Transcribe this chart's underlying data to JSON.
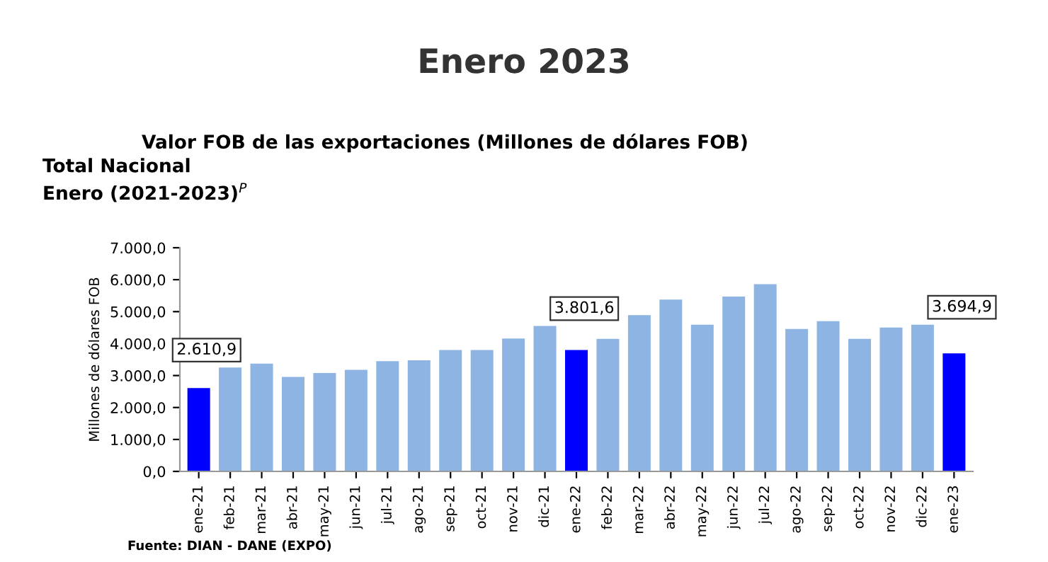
{
  "chart_data": {
    "type": "bar",
    "title": "Enero 2023",
    "subtitle": "Valor FOB de las exportaciones (Millones de dólares FOB)",
    "annotations": [
      "Total Nacional",
      "Enero (2021-2023)$^{P}$",
      "Fuente: DIAN - DANE (EXPO)"
    ],
    "ylabel": "Millones de dólares FOB",
    "categories": [
      "ene-21",
      "feb-21",
      "mar-21",
      "abr-21",
      "may-21",
      "jun-21",
      "jul-21",
      "ago-21",
      "sep-21",
      "oct-21",
      "nov-21",
      "dic-21",
      "ene-22",
      "feb-22",
      "mar-22",
      "abr-22",
      "may-22",
      "jun-22",
      "jul-22",
      "ago-22",
      "sep-22",
      "oct-22",
      "nov-22",
      "dic-22",
      "ene-23"
    ],
    "values": [
      2610.9,
      3250,
      3370,
      2960,
      3080,
      3180,
      3450,
      3480,
      3800,
      3800,
      4160,
      4550,
      3801.6,
      4150,
      4890,
      5380,
      4590,
      5470,
      5860,
      4460,
      4700,
      4150,
      4500,
      4590,
      3694.9
    ],
    "colors": [
      "#0000ff",
      "#8db4e2",
      "#8db4e2",
      "#8db4e2",
      "#8db4e2",
      "#8db4e2",
      "#8db4e2",
      "#8db4e2",
      "#8db4e2",
      "#8db4e2",
      "#8db4e2",
      "#8db4e2",
      "#0000ff",
      "#8db4e2",
      "#8db4e2",
      "#8db4e2",
      "#8db4e2",
      "#8db4e2",
      "#8db4e2",
      "#8db4e2",
      "#8db4e2",
      "#8db4e2",
      "#8db4e2",
      "#8db4e2",
      "#0000ff"
    ],
    "value_labels": [
      "2.610,9",
      null,
      null,
      null,
      null,
      null,
      null,
      null,
      null,
      null,
      null,
      null,
      "3.801,6",
      null,
      null,
      null,
      null,
      null,
      null,
      null,
      null,
      null,
      null,
      null,
      "3.694,9"
    ],
    "ylim": [
      0,
      7000
    ],
    "yticks": [
      {
        "value": 0,
        "label": "0,0"
      },
      {
        "value": 1000,
        "label": "1.000,0"
      },
      {
        "value": 2000,
        "label": "2.000,0"
      },
      {
        "value": 3000,
        "label": "3.000,0"
      },
      {
        "value": 4000,
        "label": "4.000,0"
      },
      {
        "value": 5000,
        "label": "5.000,0"
      },
      {
        "value": 6000,
        "label": "6.000,0"
      },
      {
        "value": 7000,
        "label": "7.000,0"
      }
    ],
    "grid": false,
    "legend": false
  }
}
